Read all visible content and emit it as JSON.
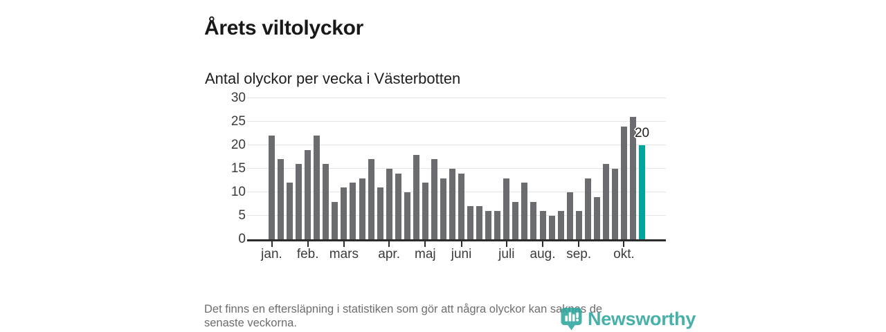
{
  "chart_data": {
    "type": "bar",
    "title": "Årets viltolyckor",
    "subtitle": "Antal olyckor per vecka i Västerbotten",
    "weeks": {
      "start": 1,
      "end": 42
    },
    "values": [
      22,
      17,
      12,
      16,
      19,
      22,
      16,
      8,
      11,
      12,
      13,
      17,
      11,
      15,
      14,
      10,
      18,
      12,
      17,
      13,
      15,
      14,
      7,
      7,
      6,
      6,
      13,
      8,
      12,
      8,
      6,
      5,
      6,
      10,
      6,
      13,
      9,
      16,
      15,
      24,
      26,
      20
    ],
    "ylim": [
      0,
      30
    ],
    "y_ticks": [
      0,
      5,
      10,
      15,
      20,
      25,
      30
    ],
    "x_month_ticks": [
      {
        "label": "jan.",
        "week": 1
      },
      {
        "label": "feb.",
        "week": 5
      },
      {
        "label": "mars",
        "week": 9
      },
      {
        "label": "apr.",
        "week": 14
      },
      {
        "label": "maj",
        "week": 18
      },
      {
        "label": "juni",
        "week": 22
      },
      {
        "label": "juli",
        "week": 27
      },
      {
        "label": "aug.",
        "week": 31
      },
      {
        "label": "sep.",
        "week": 35
      },
      {
        "label": "okt.",
        "week": 40
      }
    ],
    "highlight": {
      "week": 42,
      "value": 20,
      "label": "20"
    },
    "grid": true,
    "legend": false,
    "colors": {
      "bar": "#6b6c70",
      "highlight": "#00a69b",
      "grid": "#e4e4e4",
      "axis": "#2b2b2b",
      "tick_label": "#3b3b3b"
    }
  },
  "footer": {
    "lines": [
      "Det finns en eftersläpning i statistiken som gör att några olyckor kan saknas de",
      "senaste veckorna."
    ]
  },
  "logo": {
    "text": "Newsworthy",
    "color": "#2ea69e"
  }
}
